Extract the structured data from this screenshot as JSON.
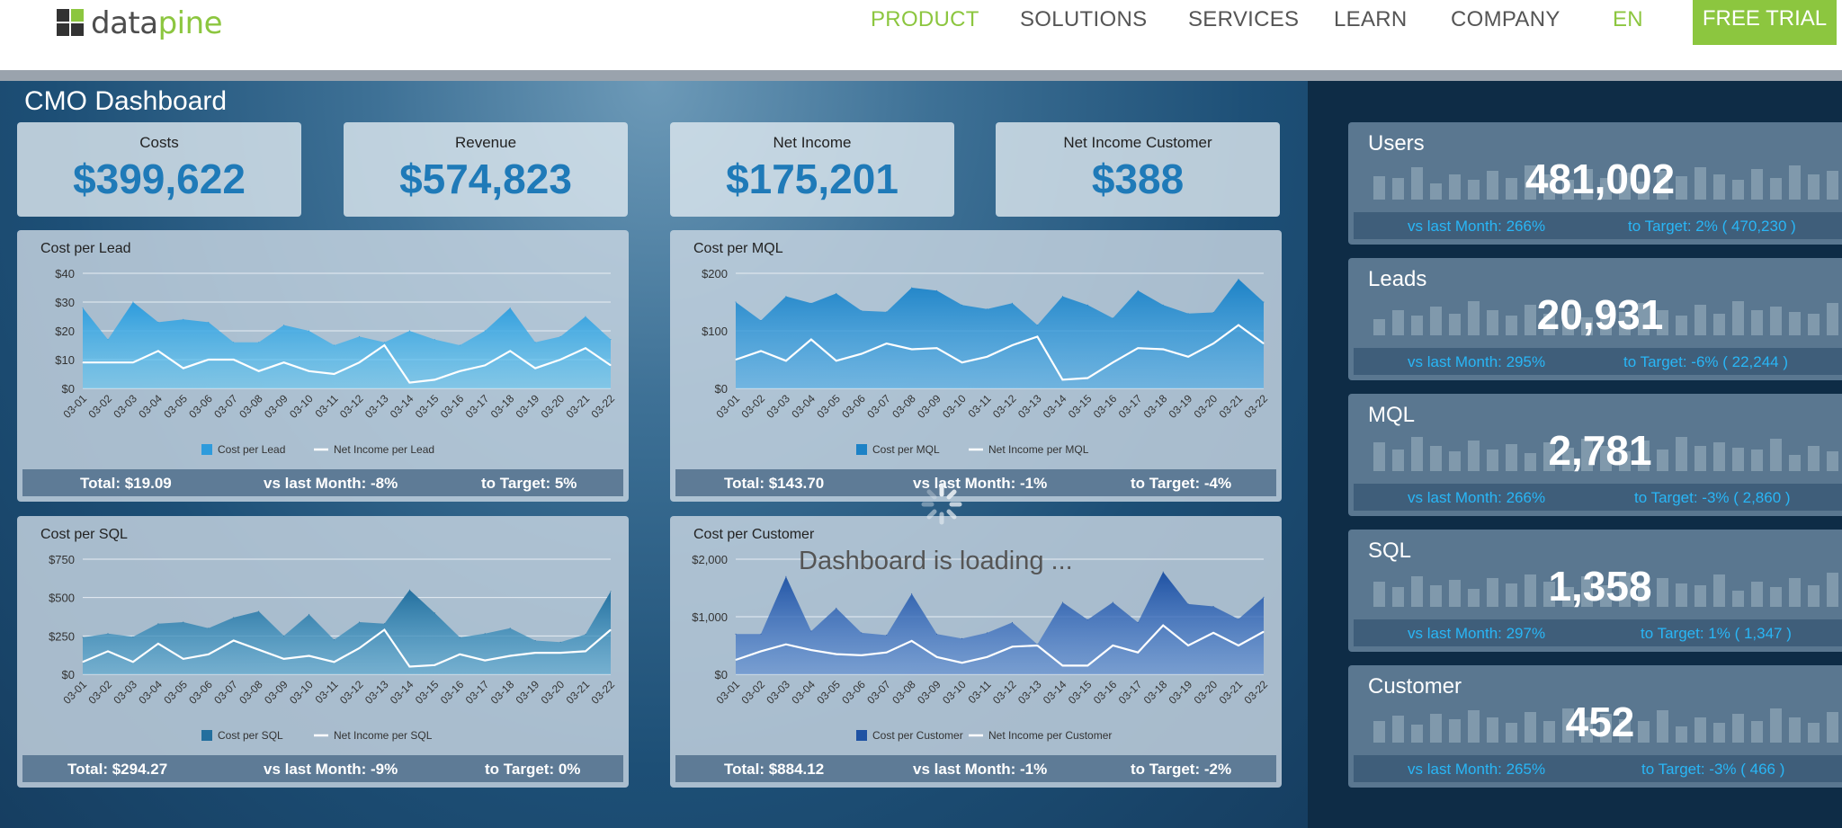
{
  "brand": {
    "name_dark": "data",
    "name_green": "pine"
  },
  "nav": {
    "items": [
      "PRODUCT",
      "SOLUTIONS",
      "SERVICES",
      "LEARN",
      "COMPANY"
    ],
    "language": "EN",
    "cta": "FREE TRIAL"
  },
  "dashboard": {
    "title": "CMO Dashboard",
    "loading_text": "Dashboard is loading ..."
  },
  "kpis": [
    {
      "label": "Costs",
      "value": "$399,622"
    },
    {
      "label": "Revenue",
      "value": "$574,823"
    },
    {
      "label": "Net Income",
      "value": "$175,201"
    },
    {
      "label": "Net Income Customer",
      "value": "$388"
    }
  ],
  "colors": {
    "accent": "#8cc63f",
    "kpi_value": "#1f7ab8",
    "metric_footer_text": "#29b6f6",
    "net_income_line": "#ffffff"
  },
  "chart_data": [
    {
      "type": "area",
      "title": "Cost per Lead",
      "categories": [
        "03-01",
        "03-02",
        "03-03",
        "03-04",
        "03-05",
        "03-06",
        "03-07",
        "03-08",
        "03-09",
        "03-10",
        "03-11",
        "03-12",
        "03-13",
        "03-14",
        "03-15",
        "03-16",
        "03-17",
        "03-18",
        "03-19",
        "03-20",
        "03-21",
        "03-22"
      ],
      "series": [
        {
          "name": "Cost per Lead",
          "values": [
            28,
            17,
            30,
            23,
            24,
            23,
            16,
            16,
            22,
            20,
            15,
            18,
            16,
            20,
            17,
            15,
            20,
            28,
            16,
            18,
            25,
            17
          ]
        },
        {
          "name": "Net Income per Lead",
          "values": [
            9,
            9,
            9,
            13,
            7,
            10,
            10,
            6,
            9,
            6,
            5,
            9,
            15,
            2,
            3,
            6,
            8,
            13,
            7,
            10,
            14,
            8
          ]
        }
      ],
      "yticks": [
        "$40",
        "$30",
        "$20",
        "$10",
        "$0"
      ],
      "ylim": [
        0,
        40
      ],
      "grid": true,
      "legend": "bottom",
      "footer": {
        "total": "Total: $19.09",
        "vs_last_month": "vs last Month: -8%",
        "to_target": "to Target: 5%"
      }
    },
    {
      "type": "area",
      "title": "Cost per MQL",
      "categories": [
        "03-01",
        "03-02",
        "03-03",
        "03-04",
        "03-05",
        "03-06",
        "03-07",
        "03-08",
        "03-09",
        "03-10",
        "03-11",
        "03-12",
        "03-13",
        "03-14",
        "03-15",
        "03-16",
        "03-17",
        "03-18",
        "03-19",
        "03-20",
        "03-21",
        "03-22"
      ],
      "series": [
        {
          "name": "Cost per MQL",
          "values": [
            150,
            118,
            160,
            148,
            165,
            135,
            133,
            175,
            170,
            145,
            138,
            148,
            110,
            160,
            145,
            122,
            170,
            145,
            130,
            132,
            190,
            150
          ]
        },
        {
          "name": "Net Income per MQL",
          "values": [
            50,
            65,
            48,
            85,
            48,
            60,
            78,
            68,
            70,
            45,
            55,
            75,
            90,
            15,
            18,
            45,
            70,
            68,
            55,
            78,
            110,
            78
          ]
        }
      ],
      "yticks": [
        "$200",
        "$100",
        "$0"
      ],
      "ylim": [
        0,
        200
      ],
      "grid": true,
      "legend": "bottom",
      "footer": {
        "total": "Total: $143.70",
        "vs_last_month": "vs last Month: -1%",
        "to_target": "to Target: -4%"
      }
    },
    {
      "type": "area",
      "title": "Cost per SQL",
      "categories": [
        "03-01",
        "03-02",
        "03-03",
        "03-04",
        "03-05",
        "03-06",
        "03-07",
        "03-08",
        "03-09",
        "03-10",
        "03-11",
        "03-12",
        "03-13",
        "03-14",
        "03-15",
        "03-16",
        "03-17",
        "03-18",
        "03-19",
        "03-20",
        "03-21",
        "03-22"
      ],
      "series": [
        {
          "name": "Cost per SQL",
          "values": [
            240,
            265,
            245,
            330,
            340,
            300,
            370,
            410,
            250,
            390,
            225,
            340,
            330,
            550,
            400,
            240,
            265,
            300,
            220,
            210,
            260,
            540
          ]
        },
        {
          "name": "Net Income per SQL",
          "values": [
            80,
            150,
            80,
            200,
            100,
            130,
            220,
            160,
            100,
            120,
            80,
            170,
            290,
            50,
            60,
            130,
            90,
            120,
            140,
            140,
            150,
            290
          ]
        }
      ],
      "yticks": [
        "$750",
        "$500",
        "$250",
        "$0"
      ],
      "ylim": [
        0,
        750
      ],
      "grid": true,
      "legend": "bottom",
      "footer": {
        "total": "Total: $294.27",
        "vs_last_month": "vs last Month: -9%",
        "to_target": "to Target: 0%"
      }
    },
    {
      "type": "area",
      "title": "Cost per Customer",
      "categories": [
        "03-01",
        "03-02",
        "03-03",
        "03-04",
        "03-05",
        "03-06",
        "03-07",
        "03-08",
        "03-09",
        "03-10",
        "03-11",
        "03-12",
        "03-13",
        "03-14",
        "03-15",
        "03-16",
        "03-17",
        "03-18",
        "03-19",
        "03-20",
        "03-21",
        "03-22"
      ],
      "series": [
        {
          "name": "Cost per Customer",
          "values": [
            700,
            700,
            1700,
            750,
            1150,
            720,
            680,
            1400,
            700,
            620,
            720,
            900,
            520,
            1250,
            950,
            1250,
            900,
            1780,
            1220,
            1180,
            960,
            1340
          ]
        },
        {
          "name": "Net Income per Customer",
          "values": [
            250,
            400,
            520,
            420,
            350,
            330,
            380,
            580,
            300,
            200,
            300,
            480,
            500,
            150,
            150,
            500,
            380,
            850,
            500,
            720,
            500,
            740
          ]
        }
      ],
      "yticks": [
        "$2,000",
        "$1,000",
        "$0"
      ],
      "ylim": [
        0,
        2000
      ],
      "grid": true,
      "legend": "bottom",
      "footer": {
        "total": "Total: $884.12",
        "vs_last_month": "vs last Month: -1%",
        "to_target": "to Target: -2%"
      }
    }
  ],
  "metrics": [
    {
      "name": "Users",
      "value": "481,002",
      "vs_last_month": "vs last Month: 266%",
      "to_target": "to Target: 2% ( 470,230 )"
    },
    {
      "name": "Leads",
      "value": "20,931",
      "vs_last_month": "vs last Month: 295%",
      "to_target": "to Target: -6% ( 22,244 )"
    },
    {
      "name": "MQL",
      "value": "2,781",
      "vs_last_month": "vs last Month: 266%",
      "to_target": "to Target: -3% ( 2,860 )"
    },
    {
      "name": "SQL",
      "value": "1,358",
      "vs_last_month": "vs last Month: 297%",
      "to_target": "to Target: 1% ( 1,347 )"
    },
    {
      "name": "Customer",
      "value": "452",
      "vs_last_month": "vs last Month: 265%",
      "to_target": "to Target: -3% ( 466 )"
    }
  ]
}
